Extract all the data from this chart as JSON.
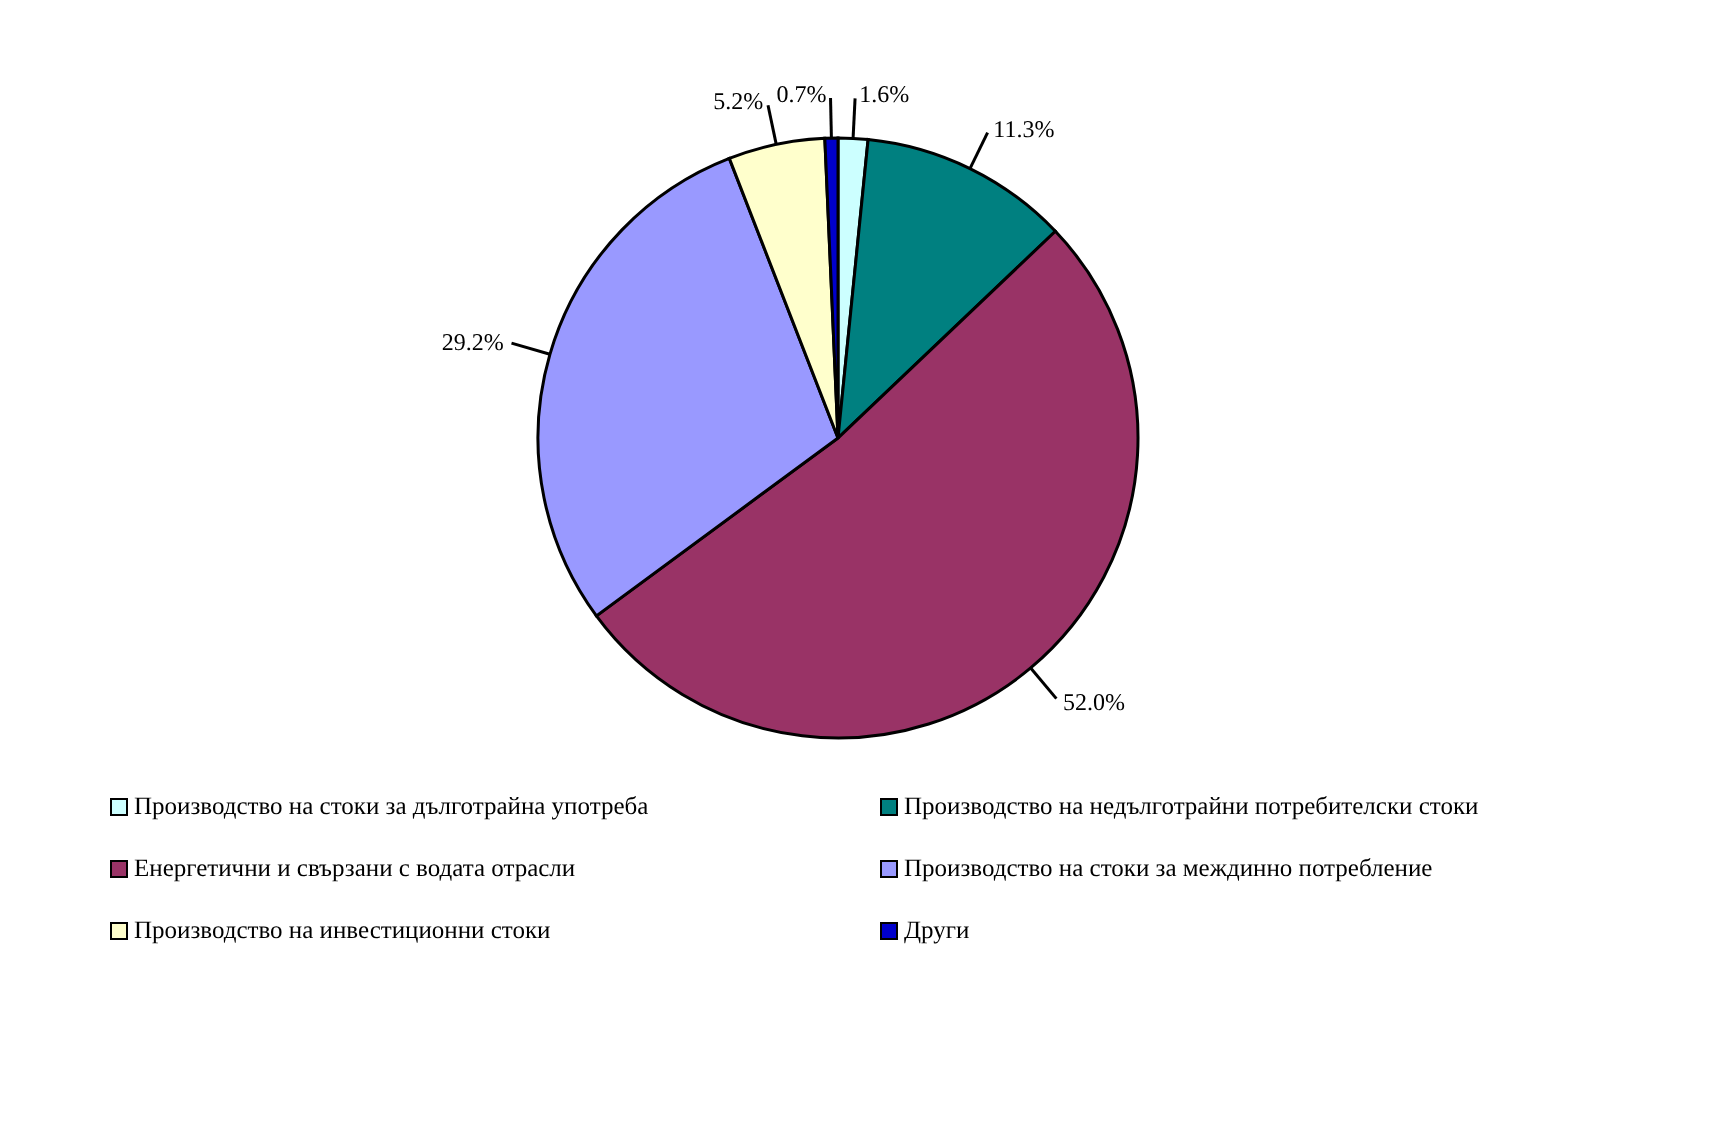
{
  "chart_data": {
    "type": "pie",
    "categories": [
      "Производство на стоки за дълготрайна употреба",
      "Производство на недълготрайни потребителски стоки",
      "Енергетични и свързани с водата отрасли",
      "Производство на стоки за междинно потребление",
      "Производство на инвестиционни стоки",
      "Други"
    ],
    "values": [
      1.6,
      11.3,
      52.0,
      29.2,
      5.2,
      0.7
    ],
    "colors": [
      "#ccffff",
      "#008080",
      "#993366",
      "#9999ff",
      "#ffffcc",
      "#0000cc"
    ],
    "value_labels": [
      "1.6%",
      "11.3%",
      "52.0%",
      "29.2%",
      "5.2%",
      "0.7%"
    ],
    "legend": "bottom"
  }
}
